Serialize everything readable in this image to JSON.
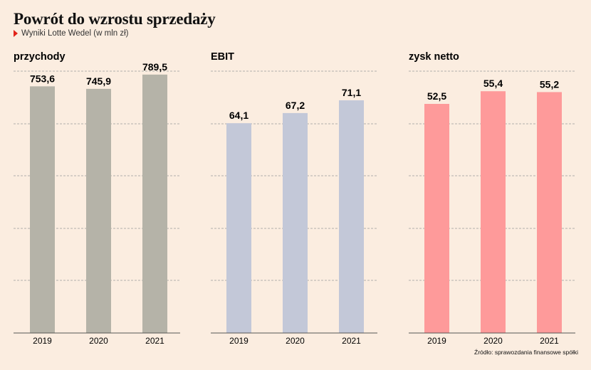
{
  "title": "Powrót do wzrostu sprzedaży",
  "subtitle": "Wyniki Lotte Wedel (w mln zł)",
  "source": "Źródło: sprawozdania finansowe spółki",
  "colors": {
    "background": "#fbede0",
    "subtitle_marker": "#e2231a",
    "grid": "#999999",
    "baseline": "#555555"
  },
  "chart_data": [
    {
      "type": "bar",
      "title": "przychody",
      "categories": [
        "2019",
        "2020",
        "2021"
      ],
      "values": [
        753.6,
        745.9,
        789.5
      ],
      "value_labels": [
        "753,6",
        "745,9",
        "789,5"
      ],
      "ylim": [
        0,
        800
      ],
      "grid": true,
      "color": "#b5b3a8"
    },
    {
      "type": "bar",
      "title": "EBIT",
      "categories": [
        "2019",
        "2020",
        "2021"
      ],
      "values": [
        64.1,
        67.2,
        71.1
      ],
      "value_labels": [
        "64,1",
        "67,2",
        "71,1"
      ],
      "ylim": [
        0,
        80
      ],
      "grid": true,
      "color": "#c3c8d8"
    },
    {
      "type": "bar",
      "title": "zysk netto",
      "categories": [
        "2019",
        "2020",
        "2021"
      ],
      "values": [
        52.5,
        55.4,
        55.2
      ],
      "value_labels": [
        "52,5",
        "55,4",
        "55,2"
      ],
      "ylim": [
        0,
        60
      ],
      "grid": true,
      "color": "#fe9a9a"
    }
  ]
}
